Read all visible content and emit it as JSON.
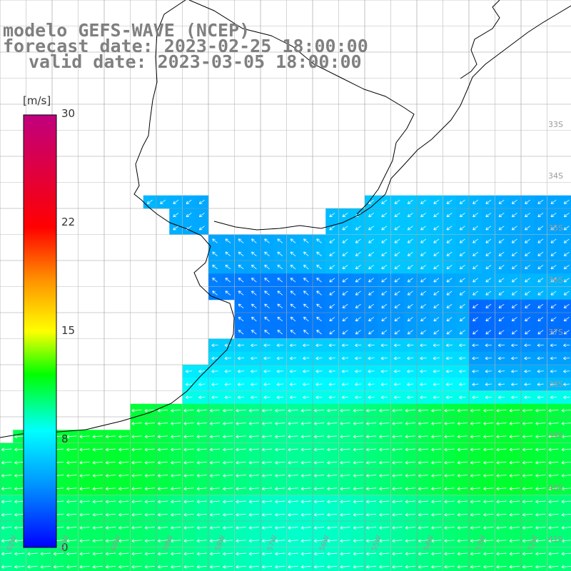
{
  "title": {
    "line1": "modelo GEFS-WAVE (NCEP)",
    "line2": "forecast date: 2023-02-25 18:00:00",
    "line3": "valid date: 2023-03-05 18:00:00"
  },
  "colorbar": {
    "unit": "[m/s]",
    "ticks": [
      "30",
      "22",
      "15",
      "8",
      "0"
    ],
    "min": 0,
    "max": 30,
    "stops": [
      "#0000ff",
      "#00a0ff",
      "#00ffff",
      "#00ff00",
      "#ffff00",
      "#ff8000",
      "#ff0000",
      "#c00080"
    ]
  },
  "lat_labels": [
    "33S",
    "34S",
    "35S",
    "36S",
    "37S",
    "38S",
    "39S",
    "40S",
    "41S"
  ],
  "lon_labels": [
    "62W",
    "61W",
    "60W",
    "59W",
    "58W",
    "57W",
    "56W",
    "55W",
    "54W",
    "53W",
    "52W",
    "51W"
  ],
  "colors": {
    "land": "#ffffff",
    "grid": "#999999",
    "coast": "#000000",
    "arrow": "#ffffff"
  }
}
